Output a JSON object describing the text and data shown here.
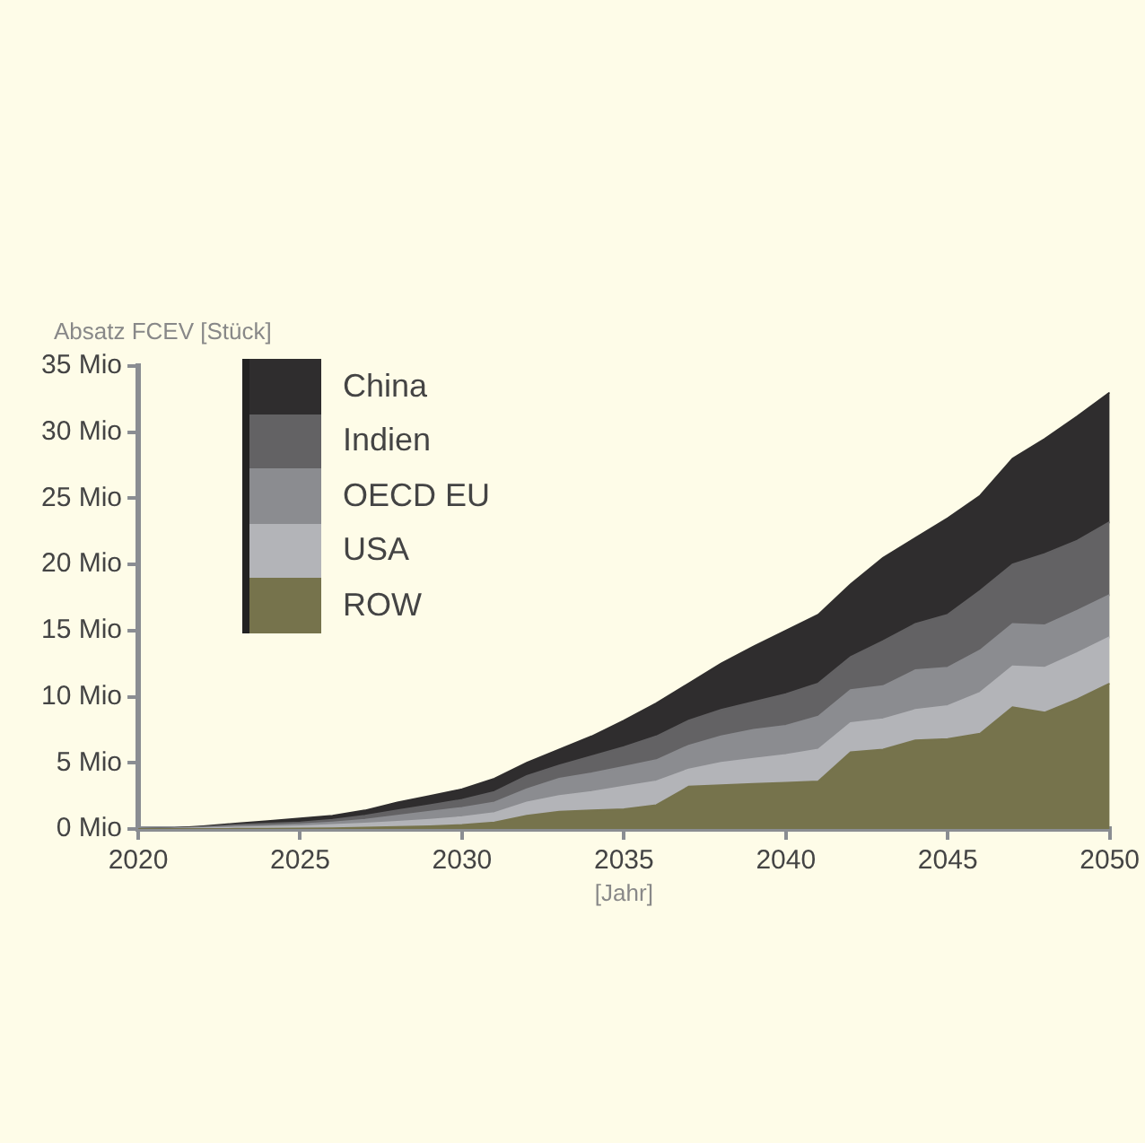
{
  "chart_data": {
    "type": "area",
    "stacked": true,
    "xlabel": "[Jahr]",
    "ylabel": "Absatz FCEV [Stück]",
    "x": [
      2020,
      2021,
      2022,
      2023,
      2024,
      2025,
      2026,
      2027,
      2028,
      2029,
      2030,
      2031,
      2032,
      2033,
      2034,
      2035,
      2036,
      2037,
      2038,
      2039,
      2040,
      2041,
      2042,
      2043,
      2044,
      2045,
      2046,
      2047,
      2048,
      2049,
      2050
    ],
    "series": [
      {
        "name": "ROW",
        "color": "#76734c",
        "values": [
          0,
          0,
          0,
          0.01,
          0.02,
          0.03,
          0.05,
          0.1,
          0.15,
          0.2,
          0.3,
          0.5,
          1.0,
          1.3,
          1.4,
          1.5,
          1.8,
          3.2,
          3.3,
          3.4,
          3.5,
          3.6,
          5.8,
          6.0,
          6.7,
          6.8,
          7.2,
          9.2,
          8.8,
          9.8,
          11.0
        ]
      },
      {
        "name": "USA",
        "color": "#b3b4b8",
        "values": [
          0,
          0.01,
          0.05,
          0.09,
          0.13,
          0.17,
          0.25,
          0.3,
          0.4,
          0.5,
          0.6,
          0.7,
          1.0,
          1.2,
          1.4,
          1.7,
          1.8,
          1.3,
          1.7,
          1.9,
          2.1,
          2.4,
          2.2,
          2.3,
          2.3,
          2.5,
          3.1,
          3.1,
          3.4,
          3.5,
          3.5
        ]
      },
      {
        "name": "OECD EU",
        "color": "#8b8c90",
        "values": [
          0,
          0.01,
          0.05,
          0.1,
          0.1,
          0.15,
          0.2,
          0.3,
          0.45,
          0.6,
          0.7,
          0.8,
          1.0,
          1.3,
          1.4,
          1.5,
          1.6,
          1.8,
          2.0,
          2.2,
          2.2,
          2.5,
          2.5,
          2.5,
          3.0,
          2.9,
          3.2,
          3.2,
          3.2,
          3.2,
          3.2
        ]
      },
      {
        "name": "Indien",
        "color": "#636264",
        "values": [
          0,
          0.01,
          0.05,
          0.1,
          0.15,
          0.15,
          0.2,
          0.3,
          0.4,
          0.5,
          0.6,
          0.8,
          1.0,
          1.0,
          1.3,
          1.5,
          1.8,
          1.9,
          2.0,
          2.1,
          2.4,
          2.5,
          2.5,
          3.4,
          3.5,
          4.0,
          4.5,
          4.5,
          5.4,
          5.3,
          5.5
        ]
      },
      {
        "name": "China",
        "color": "#2f2d2e",
        "values": [
          0,
          0.02,
          0.05,
          0.1,
          0.2,
          0.3,
          0.3,
          0.4,
          0.6,
          0.7,
          0.8,
          1.0,
          1.0,
          1.2,
          1.5,
          2.0,
          2.5,
          2.8,
          3.5,
          4.2,
          4.8,
          5.2,
          5.5,
          6.3,
          6.5,
          7.3,
          7.2,
          8.0,
          8.7,
          9.4,
          9.8
        ]
      }
    ],
    "xlim": [
      2020,
      2050
    ],
    "xticks": [
      2020,
      2025,
      2030,
      2035,
      2040,
      2045,
      2050
    ],
    "ylim": [
      0,
      35
    ],
    "yticks": [
      {
        "value": 0,
        "label": "0 Mio"
      },
      {
        "value": 5,
        "label": "5 Mio"
      },
      {
        "value": 10,
        "label": "10 Mio"
      },
      {
        "value": 15,
        "label": "15 Mio"
      },
      {
        "value": 20,
        "label": "20 Mio"
      },
      {
        "value": 25,
        "label": "25 Mio"
      },
      {
        "value": 30,
        "label": "30 Mio"
      },
      {
        "value": 35,
        "label": "35 Mio"
      }
    ],
    "grid": false,
    "legend": "top left"
  }
}
